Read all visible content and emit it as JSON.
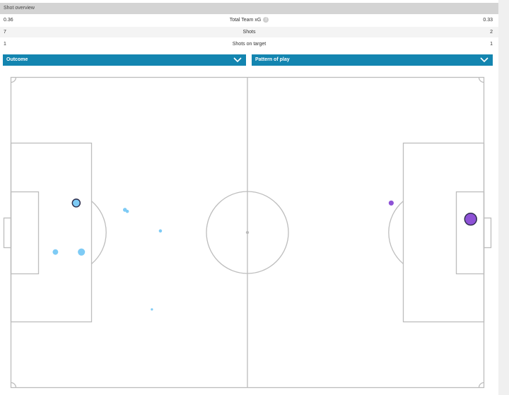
{
  "header": {
    "title": "Shot overview"
  },
  "stats": [
    {
      "left": "0.36",
      "label": "Total Team xG",
      "right": "0.33",
      "info": "i"
    },
    {
      "left": "7",
      "label": "Shots",
      "right": "2"
    },
    {
      "left": "1",
      "label": "Shots on target",
      "right": "1"
    }
  ],
  "filters": [
    {
      "label": "Outcome"
    },
    {
      "label": "Pattern of play"
    }
  ],
  "colors": {
    "accent": "#1385b0",
    "home_shot": "#7ecbf5",
    "away_shot": "#8e52d6",
    "pitch_line": "#bdbdbd"
  },
  "shots": [
    {
      "team": "home",
      "x": 13.8,
      "y": 40.5,
      "xg": 0.12,
      "on_target": true
    },
    {
      "team": "home",
      "x": 9.4,
      "y": 56.3,
      "xg": 0.06,
      "on_target": false
    },
    {
      "team": "home",
      "x": 14.9,
      "y": 56.3,
      "xg": 0.1,
      "on_target": false
    },
    {
      "team": "home",
      "x": 24.1,
      "y": 42.7,
      "xg": 0.03,
      "on_target": false
    },
    {
      "team": "home",
      "x": 24.6,
      "y": 43.2,
      "xg": 0.02,
      "on_target": false
    },
    {
      "team": "home",
      "x": 31.6,
      "y": 49.5,
      "xg": 0.02,
      "on_target": false
    },
    {
      "team": "home",
      "x": 29.8,
      "y": 74.8,
      "xg": 0.01,
      "on_target": false
    },
    {
      "team": "away",
      "x": 80.4,
      "y": 40.5,
      "xg": 0.05,
      "on_target": false
    },
    {
      "team": "away",
      "x": 97.2,
      "y": 45.7,
      "xg": 0.28,
      "on_target": true
    }
  ]
}
